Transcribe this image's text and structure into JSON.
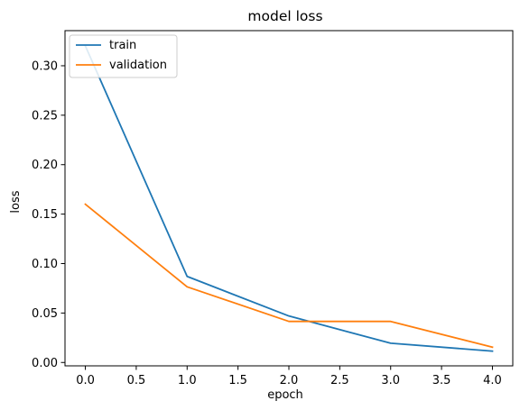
{
  "chart_data": {
    "type": "line",
    "title": "model loss",
    "xlabel": "epoch",
    "ylabel": "loss",
    "x": [
      0,
      1,
      2,
      3,
      4
    ],
    "xlim": [
      -0.2,
      4.2
    ],
    "ylim": [
      -0.0034,
      0.3355
    ],
    "xticks": [
      0.0,
      0.5,
      1.0,
      1.5,
      2.0,
      2.5,
      3.0,
      3.5,
      4.0
    ],
    "xtick_labels": [
      "0.0",
      "0.5",
      "1.0",
      "1.5",
      "2.0",
      "2.5",
      "3.0",
      "3.5",
      "4.0"
    ],
    "yticks": [
      0.0,
      0.05,
      0.1,
      0.15,
      0.2,
      0.25,
      0.3
    ],
    "ytick_labels": [
      "0.00",
      "0.05",
      "0.10",
      "0.15",
      "0.20",
      "0.25",
      "0.30"
    ],
    "grid": false,
    "legend_position": "upper left",
    "series": [
      {
        "name": "train",
        "color": "#1f77b4",
        "values": [
          0.32,
          0.087,
          0.047,
          0.0195,
          0.0115
        ]
      },
      {
        "name": "validation",
        "color": "#ff7f0e",
        "values": [
          0.16,
          0.0765,
          0.0415,
          0.0415,
          0.0155
        ]
      }
    ]
  }
}
